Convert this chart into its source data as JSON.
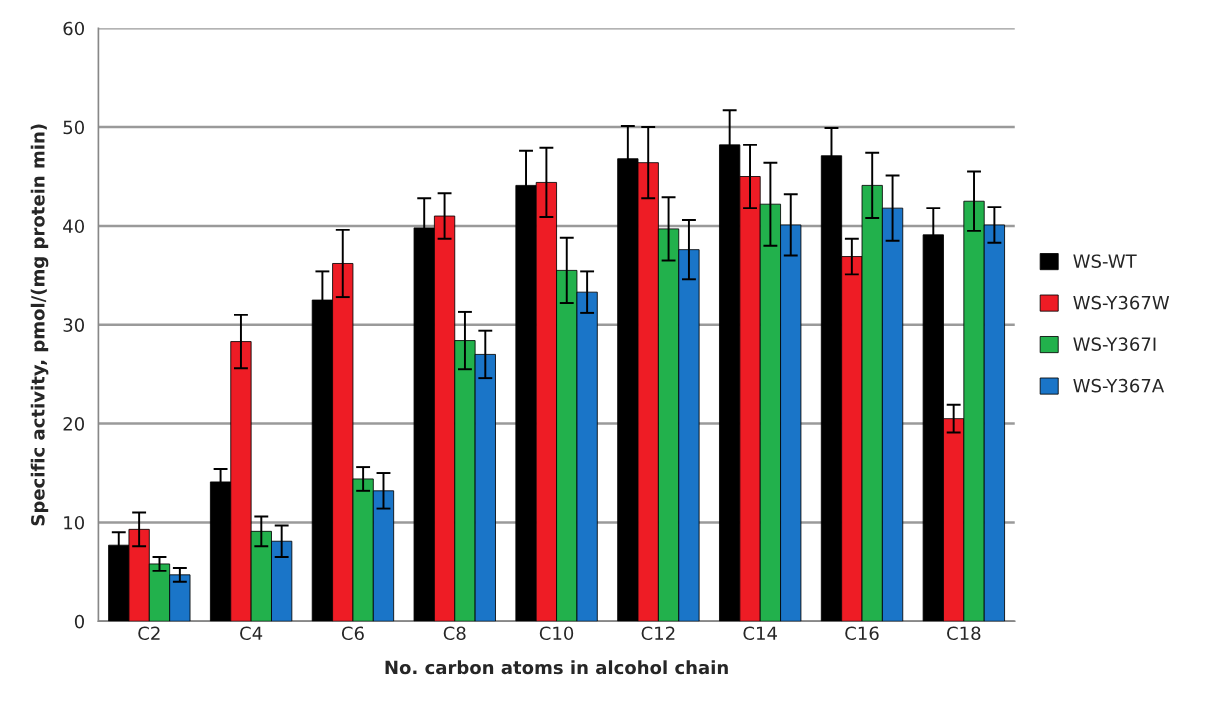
{
  "chart_data": {
    "type": "bar",
    "xlabel": "No. carbon atoms in alcohol chain",
    "ylabel": "Specific activity, pmol/(mg protein min)",
    "categories": [
      "C2",
      "C4",
      "C6",
      "C8",
      "C10",
      "C12",
      "C14",
      "C16",
      "C18"
    ],
    "series": [
      {
        "name": "WS-WT",
        "color": "#000000",
        "values": [
          7.7,
          14.1,
          32.5,
          39.8,
          44.1,
          46.8,
          48.2,
          47.1,
          39.1
        ],
        "errors": [
          1.3,
          1.3,
          2.9,
          3.0,
          3.5,
          3.3,
          3.5,
          2.8,
          2.7
        ]
      },
      {
        "name": "WS-Y367W",
        "color": "#ee1c25",
        "values": [
          9.3,
          28.3,
          36.2,
          41.0,
          44.4,
          46.4,
          45.0,
          36.9,
          20.5
        ],
        "errors": [
          1.7,
          2.7,
          3.4,
          2.3,
          3.5,
          3.6,
          3.2,
          1.8,
          1.4
        ]
      },
      {
        "name": "WS-Y367I",
        "color": "#22b14c",
        "values": [
          5.8,
          9.1,
          14.4,
          28.4,
          35.5,
          39.7,
          42.2,
          44.1,
          42.5
        ],
        "errors": [
          0.7,
          1.5,
          1.2,
          2.9,
          3.3,
          3.2,
          4.2,
          3.3,
          3.0
        ]
      },
      {
        "name": "WS-Y367A",
        "color": "#1a75c8",
        "values": [
          4.7,
          8.1,
          13.2,
          27.0,
          33.3,
          37.6,
          40.1,
          41.8,
          40.1
        ],
        "errors": [
          0.7,
          1.6,
          1.8,
          2.4,
          2.1,
          3.0,
          3.1,
          3.3,
          1.8
        ]
      }
    ],
    "ylim": [
      0,
      60
    ],
    "yticks": [
      0,
      10,
      20,
      30,
      40,
      50,
      60
    ],
    "grid": "y",
    "legend": "right"
  }
}
